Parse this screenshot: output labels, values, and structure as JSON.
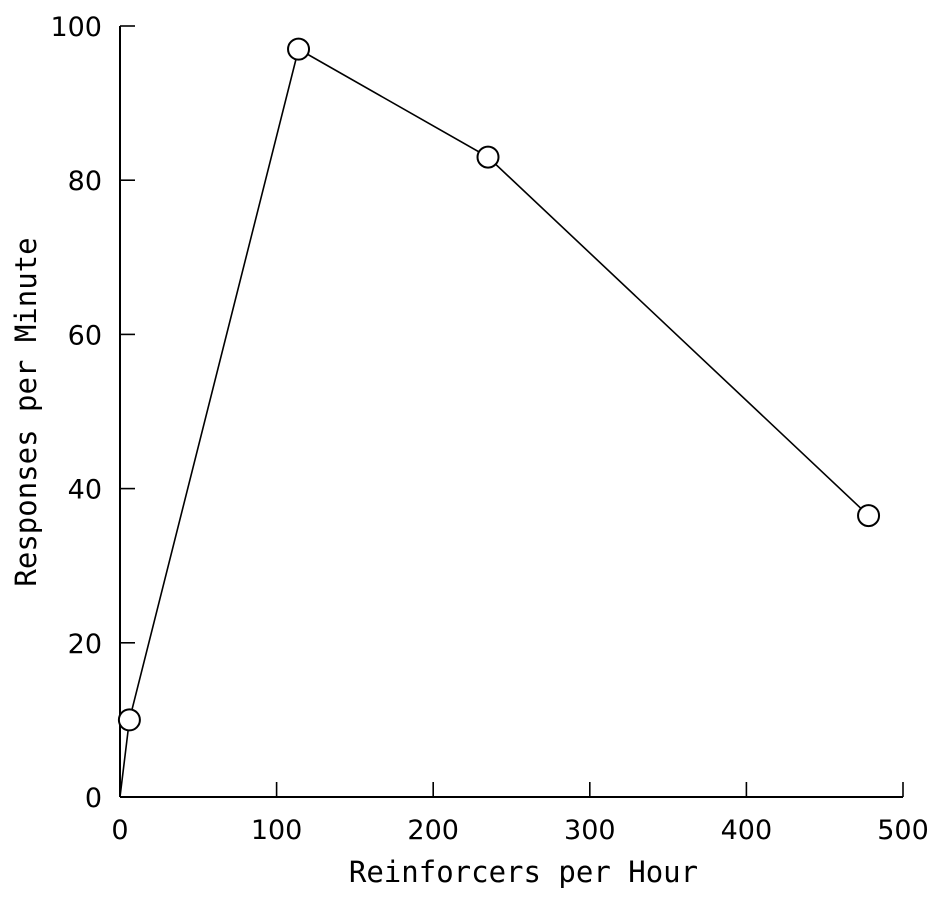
{
  "chart_data": {
    "type": "line",
    "xlabel": "Reinforcers per Hour",
    "ylabel": "Responses per Minute",
    "xlim": [
      0,
      500
    ],
    "ylim": [
      0,
      100
    ],
    "x_ticks": [
      0,
      100,
      200,
      300,
      400,
      500
    ],
    "y_ticks": [
      0,
      20,
      40,
      60,
      80,
      100
    ],
    "grid": false,
    "series": [
      {
        "marker": "open-circle",
        "x": [
          0,
          6,
          114,
          235,
          478
        ],
        "y": [
          0,
          10,
          97,
          83,
          36.5
        ]
      }
    ]
  }
}
